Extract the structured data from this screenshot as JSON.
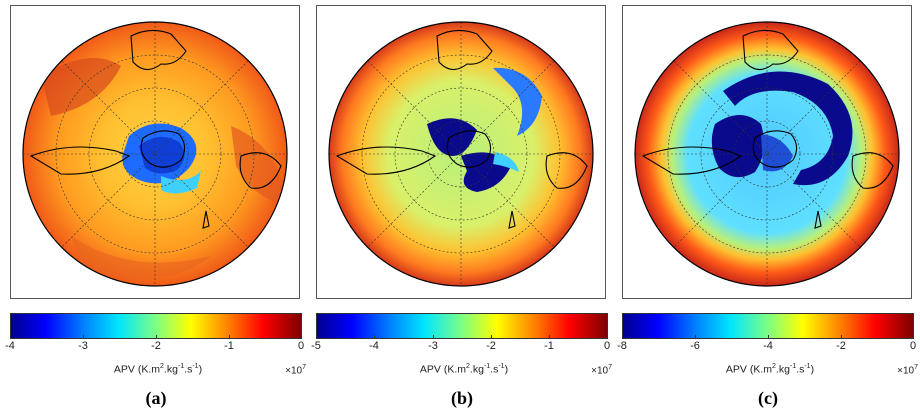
{
  "panels": [
    {
      "id": "a",
      "letter": "(a)",
      "colorbar": {
        "ticks": [
          "-4",
          "-3",
          "-2",
          "-1",
          "0"
        ],
        "label_main": "APV (K.m",
        "label_sup1": "2",
        "label_mid": ".kg",
        "label_sup2": "-1",
        "label_mid2": ".s",
        "label_sup3": "-1",
        "label_end": ")",
        "exponent_base": "×10",
        "exponent_power": "7"
      }
    },
    {
      "id": "b",
      "letter": "(b)",
      "colorbar": {
        "ticks": [
          "-5",
          "-4",
          "-3",
          "-2",
          "-1",
          "0"
        ],
        "label_main": "APV (K.m",
        "label_sup1": "2",
        "label_mid": ".kg",
        "label_sup2": "-1",
        "label_mid2": ".s",
        "label_sup3": "-1",
        "label_end": ")",
        "exponent_base": "×10",
        "exponent_power": "7"
      }
    },
    {
      "id": "c",
      "letter": "(c)",
      "colorbar": {
        "ticks": [
          "-8",
          "-6",
          "-4",
          "-2",
          "0"
        ],
        "label_main": "APV (K.m",
        "label_sup1": "2",
        "label_mid": ".kg",
        "label_sup2": "-1",
        "label_mid2": ".s",
        "label_sup3": "-1",
        "label_end": ")",
        "exponent_base": "×10",
        "exponent_power": "7"
      }
    }
  ],
  "colors": {
    "vortex_core": "#0a0a8c",
    "vortex_mid": "#1e6cff",
    "vortex_edge": "#3fd0ff",
    "midlatitude": "#f5a623",
    "outer_ring": "#d63a1a",
    "coastline": "#000000",
    "grid": "#333333"
  }
}
